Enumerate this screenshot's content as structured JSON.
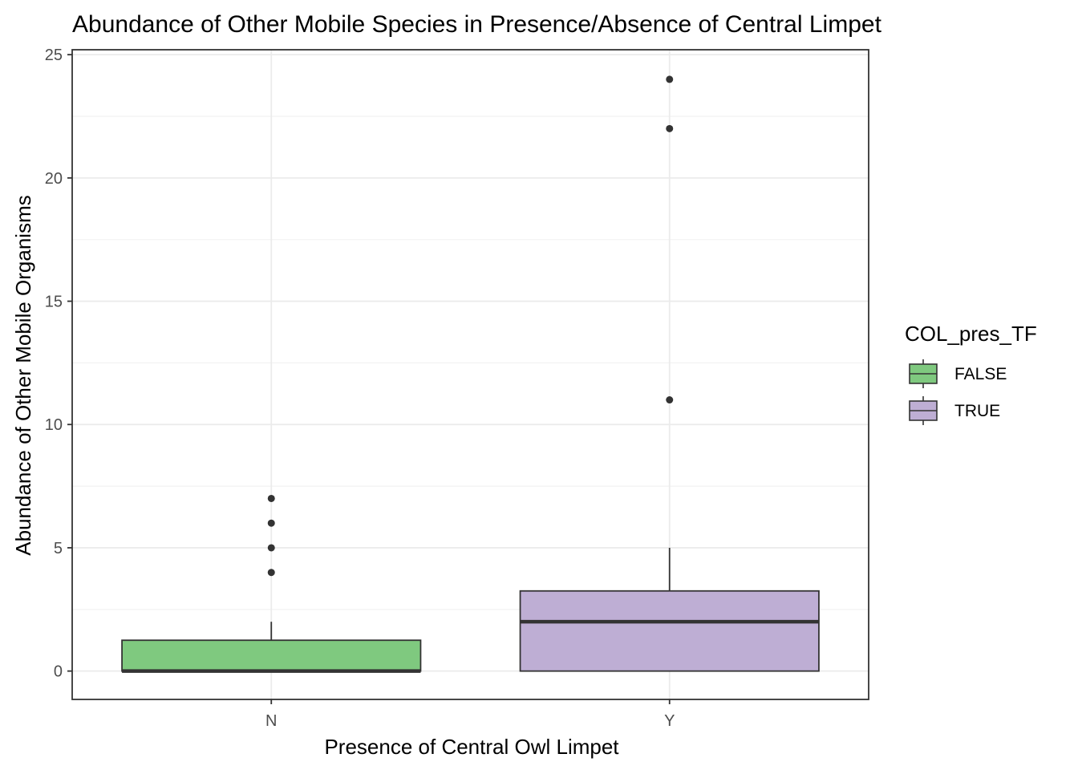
{
  "chart_data": {
    "type": "box",
    "title": "Abundance of Other Mobile Species in Presence/Absence of Central Limpet",
    "xlabel": "Presence of Central Owl Limpet",
    "ylabel": "Abundance of Other Mobile Organisms",
    "categories": [
      "N",
      "Y"
    ],
    "ylim": [
      -1.15,
      25.2
    ],
    "yticks": [
      0,
      5,
      10,
      15,
      20,
      25
    ],
    "grid": true,
    "legend": {
      "title": "COL_pres_TF",
      "position": "right",
      "entries": [
        {
          "label": "FALSE",
          "color": "#7fc97f"
        },
        {
          "label": "TRUE",
          "color": "#beaed4"
        }
      ]
    },
    "boxes": [
      {
        "category": "N",
        "group": "FALSE",
        "color": "#7fc97f",
        "whisker_low": 0,
        "q1": 0,
        "median": 0,
        "q3": 1.25,
        "whisker_high": 2,
        "outliers": [
          4,
          5,
          6,
          7
        ]
      },
      {
        "category": "Y",
        "group": "TRUE",
        "color": "#beaed4",
        "whisker_low": 0,
        "q1": 0,
        "median": 2,
        "q3": 3.25,
        "whisker_high": 5,
        "outliers": [
          11,
          22,
          24
        ]
      }
    ]
  }
}
